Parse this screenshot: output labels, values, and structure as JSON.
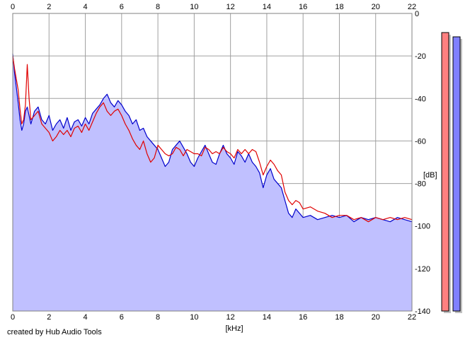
{
  "chart_data": {
    "type": "area",
    "title": "",
    "xlabel": "[kHz]",
    "ylabel": "[dB]",
    "xlim": [
      0,
      22
    ],
    "ylim": [
      -140,
      0
    ],
    "x_ticks": [
      0,
      2,
      4,
      6,
      8,
      10,
      12,
      14,
      16,
      18,
      20,
      22
    ],
    "y_ticks": [
      0,
      -20,
      -40,
      -60,
      -80,
      -100,
      -120,
      -140
    ],
    "x_tick_labels": [
      "0",
      "2",
      "4",
      "6",
      "8",
      "10",
      "12",
      "14",
      "16",
      "18",
      "20",
      "22"
    ],
    "y_tick_labels": [
      "0",
      "-20",
      "-40",
      "-60",
      "-80",
      "-100",
      "-120",
      "-140"
    ],
    "grid": true,
    "fill_color": "#c0c0ff",
    "series": [
      {
        "color": "#0000cc",
        "x": [
          0,
          0.1,
          0.2,
          0.3,
          0.4,
          0.5,
          0.6,
          0.7,
          0.8,
          0.9,
          1.0,
          1.2,
          1.4,
          1.6,
          1.8,
          2.0,
          2.2,
          2.4,
          2.6,
          2.8,
          3.0,
          3.2,
          3.4,
          3.6,
          3.8,
          4.0,
          4.2,
          4.4,
          4.6,
          4.8,
          5.0,
          5.2,
          5.4,
          5.6,
          5.8,
          6.0,
          6.2,
          6.4,
          6.6,
          6.8,
          7.0,
          7.2,
          7.4,
          7.6,
          7.8,
          8.0,
          8.2,
          8.4,
          8.6,
          8.8,
          9.0,
          9.2,
          9.4,
          9.6,
          9.8,
          10.0,
          10.2,
          10.4,
          10.6,
          10.8,
          11.0,
          11.2,
          11.4,
          11.6,
          11.8,
          12.0,
          12.2,
          12.4,
          12.6,
          12.8,
          13.0,
          13.2,
          13.4,
          13.6,
          13.8,
          14.0,
          14.2,
          14.4,
          14.6,
          14.8,
          15.0,
          15.2,
          15.4,
          15.6,
          15.8,
          16.0,
          16.4,
          16.8,
          17.2,
          17.6,
          18.0,
          18.4,
          18.8,
          19.2,
          19.6,
          20.0,
          20.4,
          20.8,
          21.2,
          21.6,
          22.0
        ],
        "y": [
          -19,
          -28,
          -35,
          -42,
          -50,
          -55,
          -52,
          -46,
          -44,
          -48,
          -52,
          -46,
          -44,
          -50,
          -52,
          -48,
          -55,
          -52,
          -50,
          -54,
          -49,
          -55,
          -51,
          -50,
          -53,
          -49,
          -52,
          -47,
          -45,
          -43,
          -40,
          -38,
          -42,
          -44,
          -41,
          -43,
          -46,
          -48,
          -52,
          -50,
          -55,
          -54,
          -58,
          -60,
          -62,
          -64,
          -68,
          -72,
          -70,
          -64,
          -62,
          -60,
          -63,
          -66,
          -70,
          -72,
          -68,
          -65,
          -62,
          -66,
          -70,
          -71,
          -66,
          -62,
          -66,
          -68,
          -71,
          -65,
          -67,
          -70,
          -66,
          -70,
          -72,
          -75,
          -82,
          -76,
          -73,
          -78,
          -80,
          -82,
          -88,
          -94,
          -96,
          -92,
          -94,
          -96,
          -95,
          -97,
          -96,
          -95,
          -96,
          -95,
          -98,
          -96,
          -97,
          -96,
          -97,
          -98,
          -96,
          -97,
          -98
        ]
      },
      {
        "color": "#e00000",
        "x": [
          0,
          0.1,
          0.2,
          0.3,
          0.4,
          0.5,
          0.6,
          0.7,
          0.8,
          0.9,
          1.0,
          1.2,
          1.4,
          1.6,
          1.8,
          2.0,
          2.2,
          2.4,
          2.6,
          2.8,
          3.0,
          3.2,
          3.4,
          3.6,
          3.8,
          4.0,
          4.2,
          4.4,
          4.6,
          4.8,
          5.0,
          5.2,
          5.4,
          5.6,
          5.8,
          6.0,
          6.2,
          6.4,
          6.6,
          6.8,
          7.0,
          7.2,
          7.4,
          7.6,
          7.8,
          8.0,
          8.2,
          8.4,
          8.6,
          8.8,
          9.0,
          9.2,
          9.4,
          9.6,
          9.8,
          10.0,
          10.2,
          10.4,
          10.6,
          10.8,
          11.0,
          11.2,
          11.4,
          11.6,
          11.8,
          12.0,
          12.2,
          12.4,
          12.6,
          12.8,
          13.0,
          13.2,
          13.4,
          13.6,
          13.8,
          14.0,
          14.2,
          14.4,
          14.6,
          14.8,
          15.0,
          15.2,
          15.4,
          15.6,
          15.8,
          16.0,
          16.4,
          16.8,
          17.2,
          17.6,
          18.0,
          18.4,
          18.8,
          19.2,
          19.6,
          20.0,
          20.4,
          20.8,
          21.2,
          21.6,
          22.0
        ],
        "y": [
          -20,
          -26,
          -31,
          -36,
          -45,
          -52,
          -50,
          -43,
          -24,
          -40,
          -50,
          -48,
          -46,
          -52,
          -54,
          -56,
          -60,
          -58,
          -55,
          -57,
          -55,
          -58,
          -54,
          -53,
          -56,
          -52,
          -55,
          -51,
          -47,
          -44,
          -42,
          -46,
          -48,
          -46,
          -45,
          -48,
          -52,
          -55,
          -59,
          -62,
          -64,
          -60,
          -66,
          -70,
          -68,
          -62,
          -64,
          -66,
          -67,
          -66,
          -63,
          -64,
          -67,
          -64,
          -65,
          -66,
          -66,
          -67,
          -63,
          -64,
          -66,
          -65,
          -66,
          -63,
          -65,
          -66,
          -68,
          -64,
          -66,
          -64,
          -66,
          -64,
          -65,
          -70,
          -76,
          -72,
          -69,
          -71,
          -74,
          -76,
          -84,
          -88,
          -90,
          -88,
          -89,
          -92,
          -91,
          -93,
          -94,
          -96,
          -95,
          -95,
          -97,
          -96,
          -98,
          -96,
          -97,
          -96,
          -97,
          -96,
          -97
        ]
      }
    ],
    "meters": {
      "max": 0,
      "min": -140,
      "levels": [
        -9,
        -11
      ],
      "colors": [
        "#ff8080",
        "#8080ff"
      ]
    }
  },
  "footer": {
    "credit": "created by Hub Audio Tools"
  }
}
